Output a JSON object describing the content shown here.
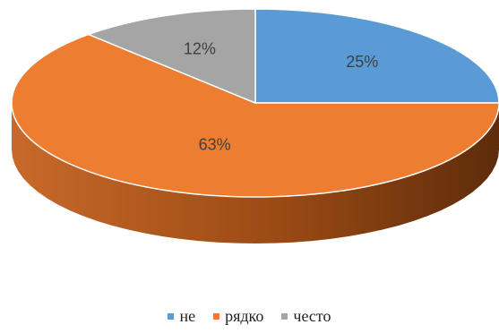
{
  "chart_data": {
    "type": "pie",
    "categories": [
      "не",
      "рядко",
      "често"
    ],
    "values": [
      25,
      63,
      12
    ],
    "data_labels": [
      "25%",
      "63%",
      "12%"
    ],
    "colors": [
      "#5B9BD5",
      "#ED7D31",
      "#A5A5A5"
    ],
    "side_colors": [
      "#2F5E8A",
      "#B85A1A",
      "#6E6E6E"
    ],
    "start_angle_deg": 90,
    "direction": "clockwise",
    "style": "3d",
    "legend_position": "bottom"
  }
}
